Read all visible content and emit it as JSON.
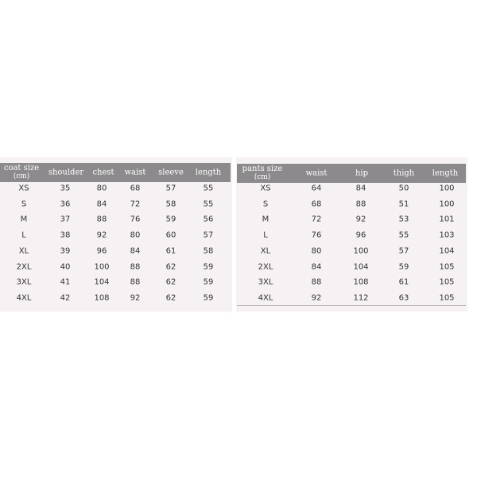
{
  "tables": [
    {
      "header": [
        [
          "coat size",
          "(cm)"
        ],
        "shoulder",
        "chest",
        "waist",
        "sleeve",
        "length"
      ],
      "rows": [
        [
          "XS",
          35,
          80,
          68,
          57,
          55
        ],
        [
          "S",
          36,
          84,
          72,
          58,
          55
        ],
        [
          "M",
          37,
          88,
          76,
          59,
          56
        ],
        [
          "L",
          38,
          92,
          80,
          60,
          57
        ],
        [
          "XL",
          39,
          96,
          84,
          61,
          58
        ],
        [
          "2XL",
          40,
          100,
          88,
          62,
          59
        ],
        [
          "3XL",
          41,
          104,
          88,
          62,
          59
        ],
        [
          "4XL",
          42,
          108,
          92,
          62,
          59
        ]
      ]
    },
    {
      "header": [
        [
          "pants size",
          "(cm)"
        ],
        "waist",
        "hip",
        "thigh",
        "length"
      ],
      "rows": [
        [
          "XS",
          64,
          84,
          50,
          100
        ],
        [
          "S",
          68,
          88,
          51,
          100
        ],
        [
          "M",
          72,
          92,
          53,
          101
        ],
        [
          "L",
          76,
          96,
          55,
          103
        ],
        [
          "XL",
          80,
          100,
          57,
          104
        ],
        [
          "2XL",
          84,
          104,
          59,
          105
        ],
        [
          "3XL",
          88,
          108,
          61,
          105
        ],
        [
          "4XL",
          92,
          112,
          63,
          105
        ]
      ]
    }
  ]
}
